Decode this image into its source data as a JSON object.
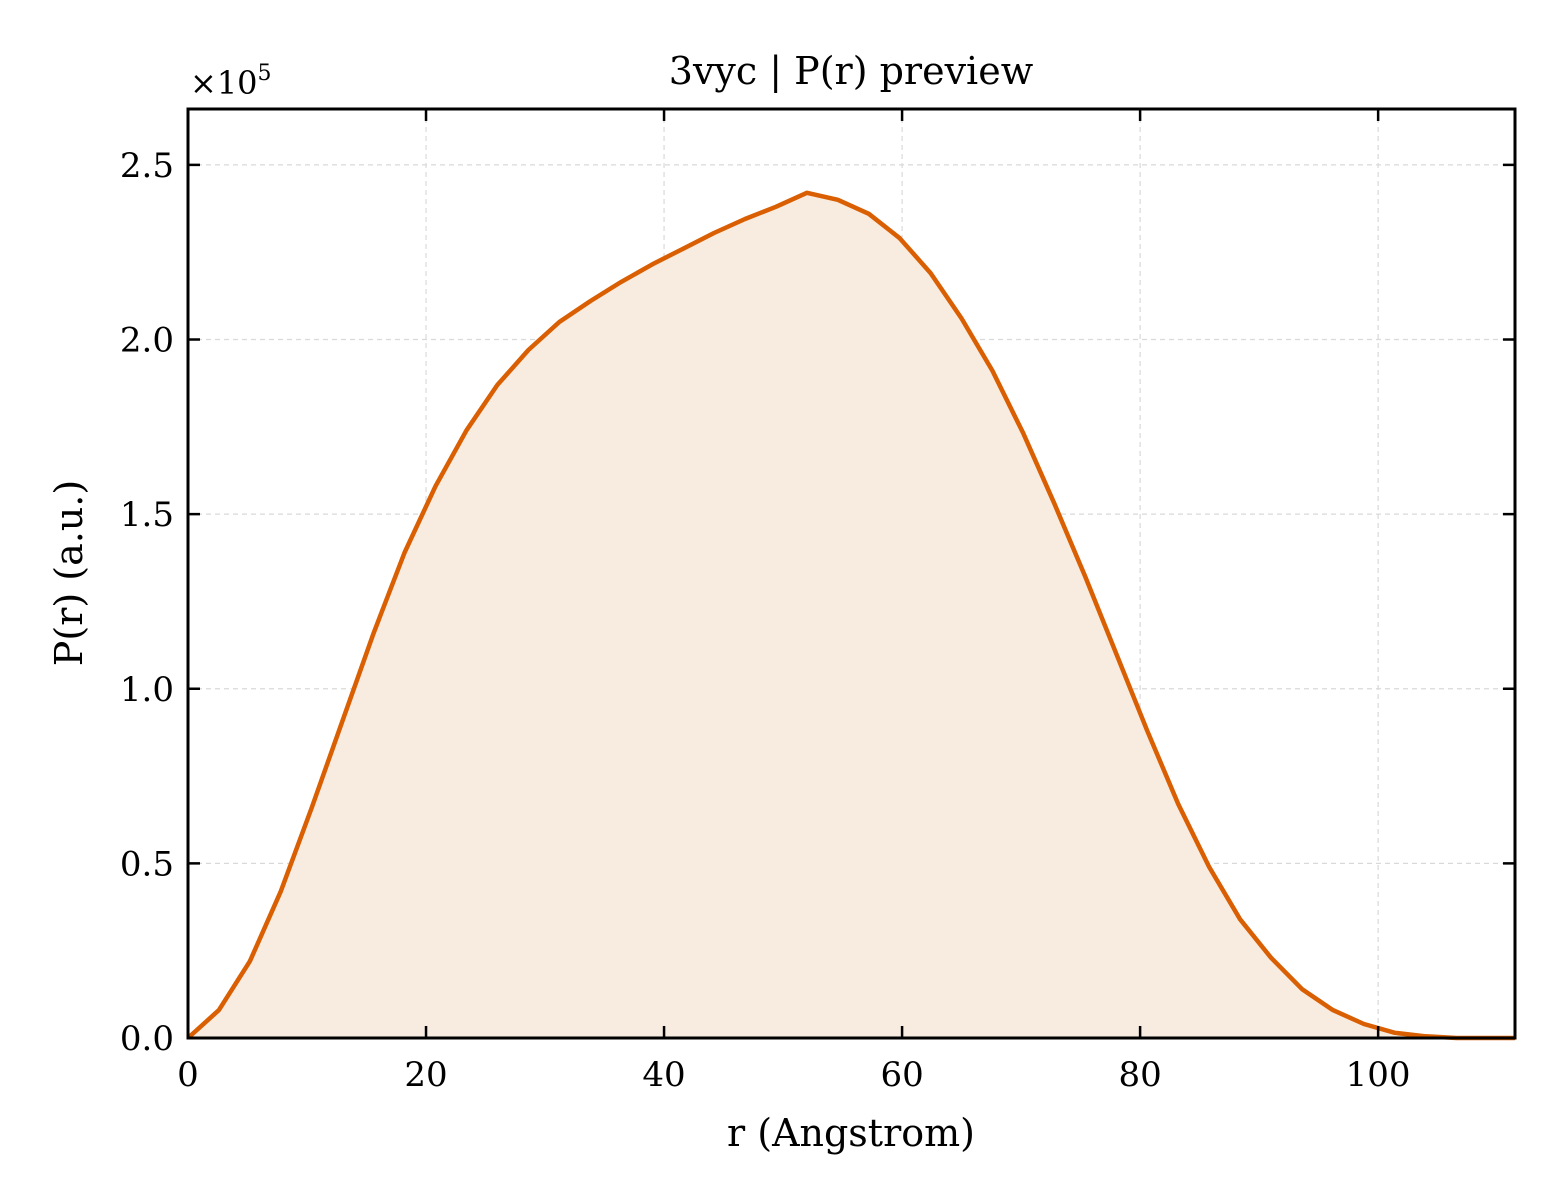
{
  "chart_data": {
    "type": "area",
    "title": "3vyc | P(r) preview",
    "xlabel": "r (Angstrom)",
    "ylabel": "P(r) (a.u.)",
    "y_multiplier_label": "×10",
    "y_multiplier_exponent": "5",
    "xlim": [
      0,
      111.5
    ],
    "ylim": [
      0,
      2.66
    ],
    "grid": true,
    "legend": "none",
    "colors": {
      "line": "#d95f02",
      "fill": "#f8ebe0",
      "grid": "#d9d9d9"
    },
    "x_ticks": [
      0,
      20,
      40,
      60,
      80,
      100
    ],
    "x_tick_labels": [
      "0",
      "20",
      "40",
      "60",
      "80",
      "100"
    ],
    "y_ticks": [
      0,
      0.5,
      1.0,
      1.5,
      2.0,
      2.5
    ],
    "y_tick_labels": [
      "0.0",
      "0.5",
      "1.0",
      "1.5",
      "2.0",
      "2.5"
    ],
    "series": [
      {
        "x": [
          0,
          2.6,
          5.2,
          7.8,
          10.4,
          13.0,
          15.6,
          18.2,
          20.8,
          23.4,
          26.0,
          28.6,
          31.2,
          33.8,
          36.4,
          39.0,
          41.6,
          44.2,
          46.8,
          49.4,
          52.0,
          54.6,
          57.2,
          59.8,
          62.4,
          65.0,
          67.6,
          70.2,
          72.8,
          75.4,
          78.0,
          80.6,
          83.2,
          85.8,
          88.4,
          91.0,
          93.6,
          96.2,
          98.8,
          101.4,
          104.0,
          106.6,
          109.2,
          111.5
        ],
        "y": [
          0.0,
          0.08,
          0.22,
          0.42,
          0.66,
          0.91,
          1.16,
          1.39,
          1.58,
          1.74,
          1.87,
          1.97,
          2.05,
          2.11,
          2.165,
          2.215,
          2.26,
          2.305,
          2.345,
          2.38,
          2.42,
          2.4,
          2.36,
          2.29,
          2.19,
          2.06,
          1.91,
          1.73,
          1.53,
          1.32,
          1.1,
          0.88,
          0.67,
          0.49,
          0.34,
          0.23,
          0.14,
          0.08,
          0.04,
          0.015,
          0.005,
          0.0,
          0.0,
          0.0
        ]
      }
    ]
  }
}
